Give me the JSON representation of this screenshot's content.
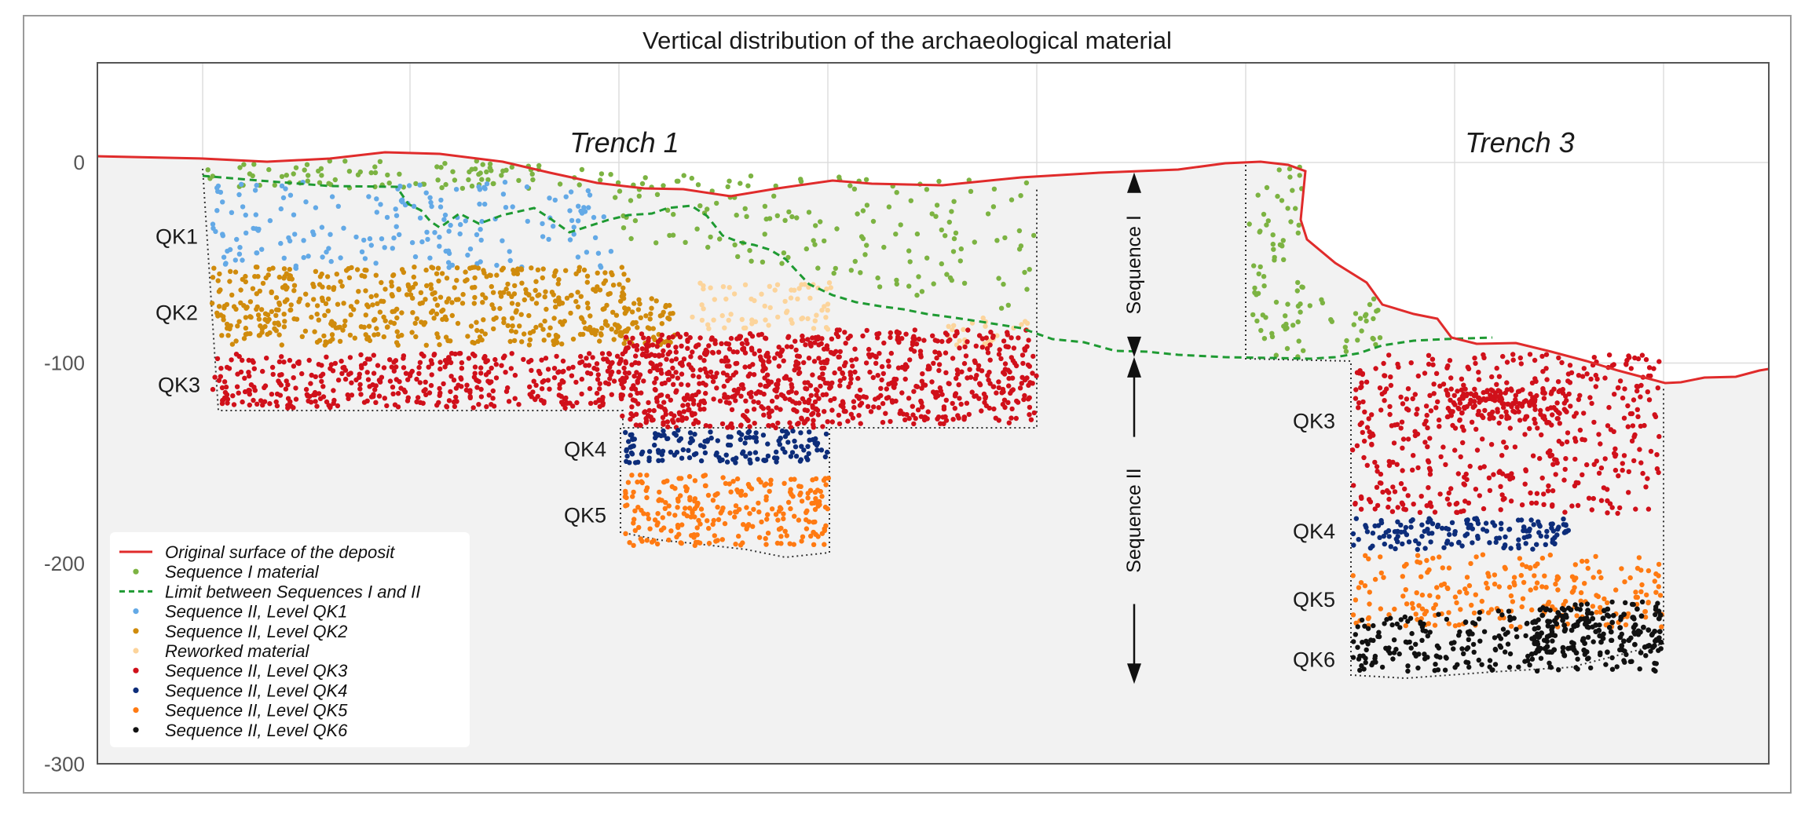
{
  "chart_data": {
    "type": "scatter",
    "title": "Vertical distribution of the archaeological material",
    "xlabel": "",
    "ylabel": "",
    "ylim": [
      -300,
      50
    ],
    "y_ticks": [
      0,
      -100,
      -200,
      -300
    ],
    "y_tick_labels": [
      "0",
      "-100",
      "-200",
      "-300"
    ],
    "grid": true,
    "legend_position": "bottom-left",
    "trenches": [
      {
        "id": "t1",
        "label": "Trench 1"
      },
      {
        "id": "t3",
        "label": "Trench 3"
      }
    ],
    "sequences": [
      {
        "id": "seq1",
        "label": "Sequence I",
        "top": -5,
        "bottom": -97
      },
      {
        "id": "seq2",
        "label": "Sequence II",
        "top": -97,
        "bottom": -260
      }
    ],
    "level_labels": [
      {
        "id": "t1-qk1",
        "text": "QK1",
        "trench": "Trench 1",
        "y": -37
      },
      {
        "id": "t1-qk2",
        "text": "QK2",
        "trench": "Trench 1",
        "y": -75
      },
      {
        "id": "t1-qk3",
        "text": "QK3",
        "trench": "Trench 1",
        "y": -111
      },
      {
        "id": "t1-qk4",
        "text": "QK4",
        "trench": "Trench 1",
        "y": -143
      },
      {
        "id": "t1-qk5",
        "text": "QK5",
        "trench": "Trench 1",
        "y": -176
      },
      {
        "id": "t3-qk3",
        "text": "QK3",
        "trench": "Trench 3",
        "y": -129
      },
      {
        "id": "t3-qk4",
        "text": "QK4",
        "trench": "Trench 3",
        "y": -184
      },
      {
        "id": "t3-qk5",
        "text": "QK5",
        "trench": "Trench 3",
        "y": -218
      },
      {
        "id": "t3-qk6",
        "text": "QK6",
        "trench": "Trench 3",
        "y": -248
      }
    ],
    "series": [
      {
        "id": "surface",
        "name": "Original surface of the deposit",
        "kind": "line",
        "color": "#e02b2b"
      },
      {
        "id": "seqI",
        "name": "Sequence I material",
        "kind": "points",
        "color": "#7cb342"
      },
      {
        "id": "limit",
        "name": "Limit between Sequences I and II",
        "kind": "dashed-line",
        "color": "#1e9a32"
      },
      {
        "id": "qk1",
        "name": "Sequence II, Level QK1",
        "kind": "points",
        "color": "#63a9e6"
      },
      {
        "id": "qk2",
        "name": "Sequence II, Level QK2",
        "kind": "points",
        "color": "#d08b0c"
      },
      {
        "id": "rew",
        "name": "Reworked material",
        "kind": "points",
        "color": "#fcd49b"
      },
      {
        "id": "qk3",
        "name": "Sequence II, Level QK3",
        "kind": "points",
        "color": "#d0101a"
      },
      {
        "id": "qk4",
        "name": "Sequence II, Level QK4",
        "kind": "points",
        "color": "#0d2d7a"
      },
      {
        "id": "qk5",
        "name": "Sequence II, Level QK5",
        "kind": "points",
        "color": "#ff7a12"
      },
      {
        "id": "qk6",
        "name": "Sequence II, Level QK6",
        "kind": "points",
        "color": "#111111"
      }
    ]
  }
}
